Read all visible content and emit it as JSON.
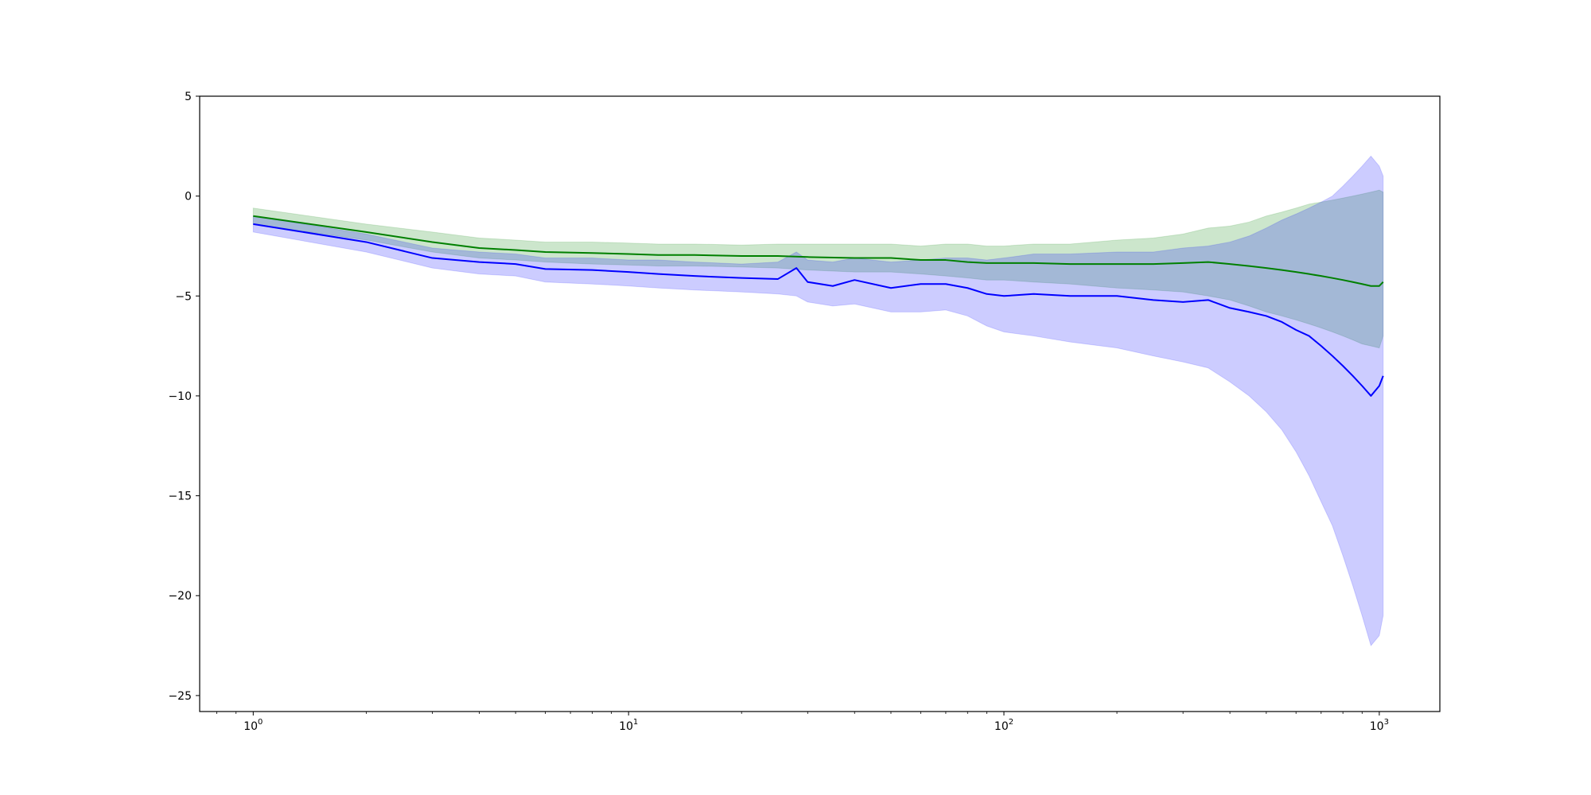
{
  "chart_data": {
    "type": "line",
    "title": "",
    "xlabel": "",
    "ylabel": "",
    "xscale": "log",
    "xlim": [
      0.72,
      1450
    ],
    "ylim": [
      -25.8,
      5
    ],
    "grid": false,
    "legend": "none",
    "x_ticks": [
      {
        "value": 1,
        "base": "10",
        "exp": "0"
      },
      {
        "value": 10,
        "base": "10",
        "exp": "1"
      },
      {
        "value": 100,
        "base": "10",
        "exp": "2"
      },
      {
        "value": 1000,
        "base": "10",
        "exp": "3"
      }
    ],
    "y_ticks": [
      {
        "value": 5,
        "label": "5"
      },
      {
        "value": 0,
        "label": "0"
      },
      {
        "value": -5,
        "label": "−5"
      },
      {
        "value": -10,
        "label": "−10"
      },
      {
        "value": -15,
        "label": "−15"
      },
      {
        "value": -20,
        "label": "−20"
      },
      {
        "value": -25,
        "label": "−25"
      }
    ],
    "series": [
      {
        "color": "#008000",
        "band_color": "#008000",
        "band_opacity": 0.2,
        "x": [
          1,
          2,
          3,
          4,
          5,
          6,
          8,
          10,
          12,
          15,
          20,
          25,
          30,
          40,
          50,
          60,
          70,
          80,
          90,
          100,
          120,
          150,
          200,
          250,
          300,
          350,
          400,
          450,
          500,
          550,
          600,
          650,
          700,
          750,
          800,
          850,
          900,
          950,
          1000,
          1024
        ],
        "values": [
          -1.0,
          -1.8,
          -2.3,
          -2.6,
          -2.7,
          -2.8,
          -2.85,
          -2.9,
          -2.95,
          -2.95,
          -3.0,
          -3.0,
          -3.05,
          -3.1,
          -3.1,
          -3.2,
          -3.2,
          -3.3,
          -3.35,
          -3.35,
          -3.35,
          -3.4,
          -3.4,
          -3.4,
          -3.35,
          -3.3,
          -3.4,
          -3.5,
          -3.6,
          -3.7,
          -3.8,
          -3.9,
          -4.0,
          -4.1,
          -4.2,
          -4.3,
          -4.4,
          -4.5,
          -4.5,
          -4.3
        ],
        "lower": [
          -1.4,
          -2.2,
          -2.8,
          -3.1,
          -3.2,
          -3.3,
          -3.4,
          -3.45,
          -3.5,
          -3.5,
          -3.55,
          -3.6,
          -3.7,
          -3.8,
          -3.8,
          -3.9,
          -4.0,
          -4.1,
          -4.2,
          -4.2,
          -4.3,
          -4.4,
          -4.6,
          -4.7,
          -4.8,
          -5.0,
          -5.2,
          -5.5,
          -5.8,
          -6.0,
          -6.2,
          -6.4,
          -6.6,
          -6.8,
          -7.0,
          -7.2,
          -7.4,
          -7.5,
          -7.6,
          -7.0
        ],
        "upper": [
          -0.6,
          -1.4,
          -1.8,
          -2.1,
          -2.2,
          -2.3,
          -2.3,
          -2.35,
          -2.4,
          -2.4,
          -2.45,
          -2.4,
          -2.4,
          -2.4,
          -2.4,
          -2.5,
          -2.4,
          -2.4,
          -2.5,
          -2.5,
          -2.4,
          -2.4,
          -2.2,
          -2.1,
          -1.9,
          -1.6,
          -1.5,
          -1.3,
          -1.0,
          -0.8,
          -0.6,
          -0.4,
          -0.3,
          -0.2,
          -0.1,
          0.0,
          0.1,
          0.2,
          0.3,
          0.2
        ]
      },
      {
        "color": "#0000ff",
        "band_color": "#0000ff",
        "band_opacity": 0.2,
        "x": [
          1,
          2,
          3,
          4,
          5,
          6,
          8,
          10,
          12,
          15,
          20,
          25,
          28,
          30,
          35,
          40,
          50,
          60,
          70,
          80,
          90,
          100,
          120,
          150,
          200,
          250,
          300,
          350,
          400,
          450,
          500,
          550,
          600,
          650,
          700,
          750,
          800,
          850,
          900,
          950,
          1000,
          1024
        ],
        "values": [
          -1.4,
          -2.3,
          -3.1,
          -3.3,
          -3.4,
          -3.65,
          -3.7,
          -3.8,
          -3.9,
          -4.0,
          -4.1,
          -4.15,
          -3.6,
          -4.3,
          -4.5,
          -4.2,
          -4.6,
          -4.4,
          -4.4,
          -4.6,
          -4.9,
          -5.0,
          -4.9,
          -5.0,
          -5.0,
          -5.2,
          -5.3,
          -5.2,
          -5.6,
          -5.8,
          -6.0,
          -6.3,
          -6.7,
          -7.0,
          -7.5,
          -8.0,
          -8.5,
          -9.0,
          -9.5,
          -10.0,
          -9.5,
          -9.0
        ],
        "lower": [
          -1.8,
          -2.8,
          -3.6,
          -3.9,
          -4.0,
          -4.3,
          -4.4,
          -4.5,
          -4.6,
          -4.7,
          -4.8,
          -4.9,
          -5.0,
          -5.3,
          -5.5,
          -5.4,
          -5.8,
          -5.8,
          -5.7,
          -6.0,
          -6.5,
          -6.8,
          -7.0,
          -7.3,
          -7.6,
          -8.0,
          -8.3,
          -8.6,
          -9.3,
          -10.0,
          -10.8,
          -11.7,
          -12.8,
          -14.0,
          -15.3,
          -16.5,
          -18.0,
          -19.5,
          -21.0,
          -22.5,
          -22.0,
          -21.0
        ],
        "upper": [
          -1.0,
          -1.9,
          -2.6,
          -2.8,
          -2.9,
          -3.1,
          -3.1,
          -3.2,
          -3.2,
          -3.3,
          -3.4,
          -3.3,
          -2.8,
          -3.2,
          -3.3,
          -3.1,
          -3.3,
          -3.2,
          -3.1,
          -3.1,
          -3.2,
          -3.1,
          -2.9,
          -2.9,
          -2.8,
          -2.8,
          -2.6,
          -2.5,
          -2.3,
          -2.0,
          -1.6,
          -1.2,
          -0.9,
          -0.6,
          -0.3,
          0.0,
          0.5,
          1.0,
          1.5,
          2.0,
          1.5,
          1.0
        ]
      }
    ]
  }
}
